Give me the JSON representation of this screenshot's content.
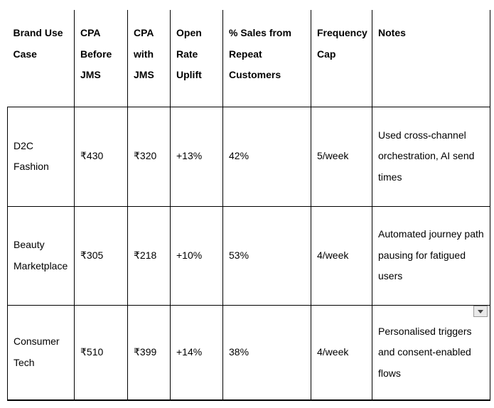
{
  "colors": {
    "background": "#ffffff",
    "text": "#000000",
    "table_border": "#000000",
    "dropdown_button_bg": "#e9e9e9",
    "dropdown_button_border": "#9a9a9a",
    "dropdown_arrow": "#424242"
  },
  "table": {
    "header": [
      "Brand Use Case",
      "CPA Before JMS",
      "CPA with JMS",
      "Open Rate Uplift",
      "% Sales from Repeat Customers",
      "Frequency Cap",
      "Notes"
    ],
    "rows": [
      {
        "cells": [
          "D2C Fashion",
          "₹430",
          "₹320",
          "+13%",
          "42%",
          "5/week",
          "Used cross-channel orchestration, AI send times"
        ]
      },
      {
        "cells": [
          "Beauty Marketplace",
          "₹305",
          "₹218",
          "+10%",
          "53%",
          "4/week",
          "Automated journey path pausing for fatigued users"
        ]
      },
      {
        "cells": [
          "Consumer Tech",
          "₹510",
          "₹399",
          "+14%",
          "38%",
          "4/week",
          "Personalised triggers and consent-enabled flows"
        ]
      }
    ]
  },
  "dropdown_button": {
    "icon": "dropdown-arrow-icon"
  }
}
